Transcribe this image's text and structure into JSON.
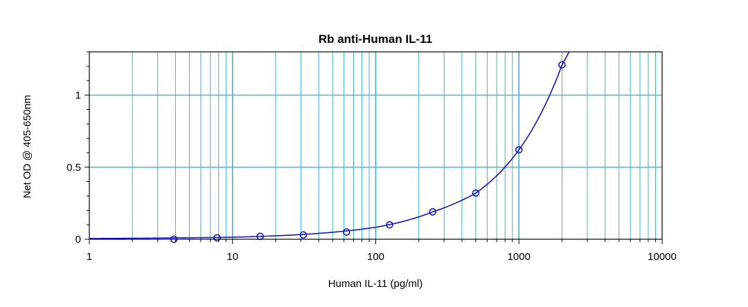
{
  "chart_data": {
    "type": "scatter",
    "title": "Rb anti-Human IL-11",
    "xlabel": "Human IL-11 (pg/ml)",
    "ylabel": "Net OD @ 405-650nm",
    "x_scale": "log",
    "xlim": [
      1,
      10000
    ],
    "ylim": [
      0,
      1.3
    ],
    "x_ticks": [
      1,
      10,
      100,
      1000,
      10000
    ],
    "x_tick_labels": [
      "1",
      "10",
      "100",
      "1000",
      "10000"
    ],
    "y_ticks": [
      0,
      0.5,
      1
    ],
    "y_tick_labels": [
      "0",
      "0.5",
      "1"
    ],
    "grid": true,
    "legend": "none",
    "series": [
      {
        "marker": "open-circle",
        "x": [
          3.9,
          7.8,
          15.6,
          31.2,
          62.5,
          125,
          250,
          500,
          1000,
          2000
        ],
        "y": [
          0.0,
          0.01,
          0.02,
          0.03,
          0.05,
          0.1,
          0.19,
          0.32,
          0.62,
          1.21
        ]
      }
    ],
    "fit_curve": {
      "type": "exponential",
      "x_start": 1,
      "x_end": 2240,
      "points": [
        [
          1,
          0.005
        ],
        [
          10,
          0.014
        ],
        [
          100,
          0.083
        ],
        [
          250,
          0.19
        ],
        [
          500,
          0.32
        ],
        [
          1000,
          0.62
        ],
        [
          2000,
          1.21
        ],
        [
          2240,
          1.3
        ]
      ]
    },
    "colors": {
      "grid": "#36b5d2",
      "data": "#1414c8",
      "axis": "#000000",
      "background": "#ffffff"
    }
  }
}
